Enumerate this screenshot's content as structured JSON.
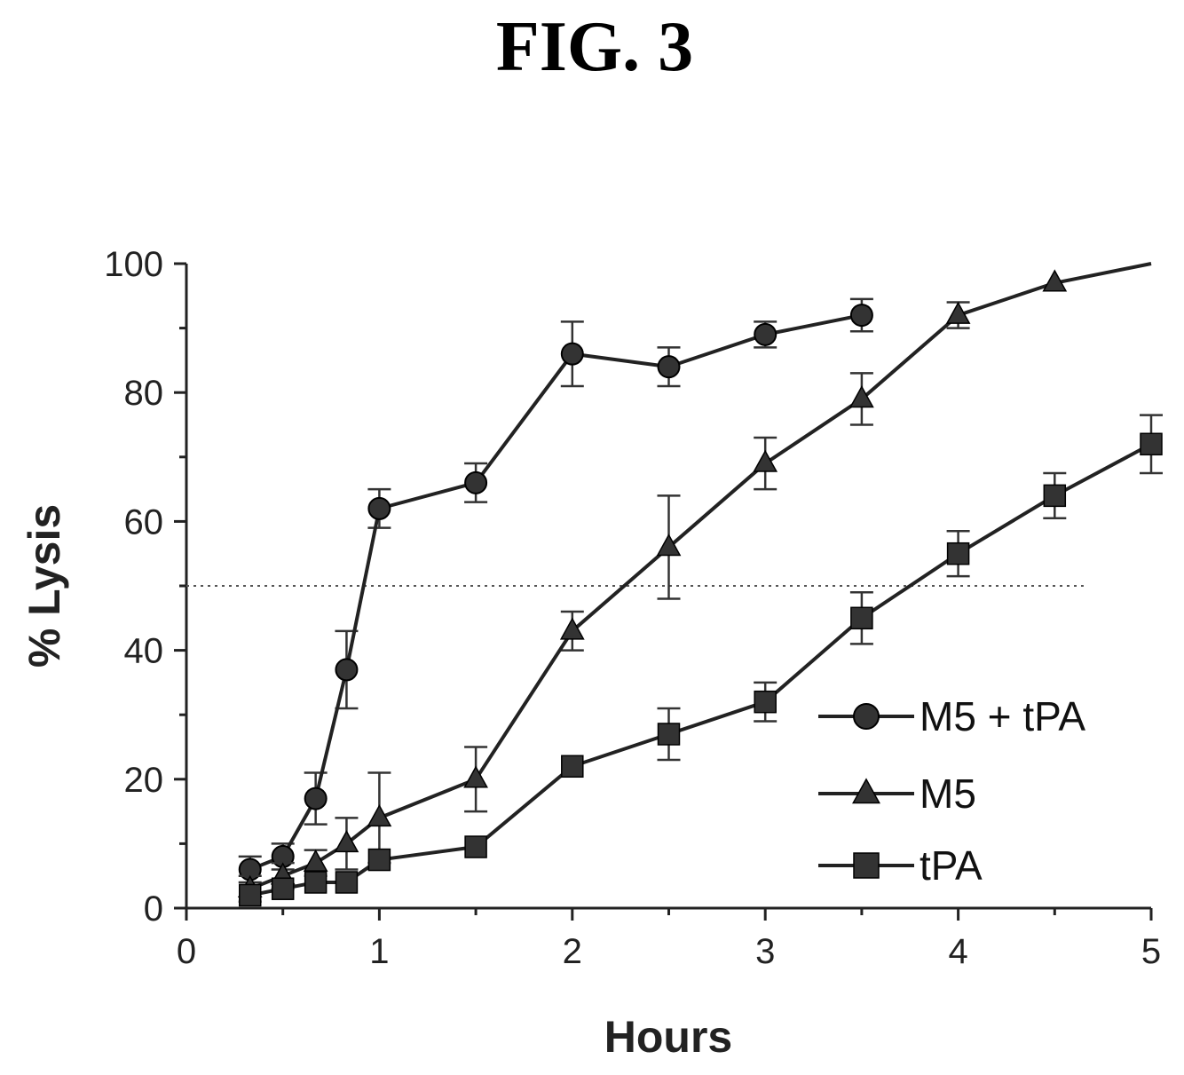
{
  "figure_title": "FIG. 3",
  "chart_data": {
    "type": "line",
    "title": "FIG. 3",
    "xlabel": "Hours",
    "ylabel": "% Lysis",
    "xlim": [
      0,
      5
    ],
    "ylim": [
      0,
      100
    ],
    "x_ticks": [
      "0",
      "1",
      "2",
      "3",
      "4",
      "5"
    ],
    "y_ticks": [
      "0",
      "20",
      "40",
      "60",
      "80",
      "100"
    ],
    "grid": false,
    "reference_line": {
      "y": 50,
      "style": "dotted"
    },
    "legend_position": "right",
    "series": [
      {
        "name": "M5 + tPA",
        "marker": "circle",
        "x": [
          0.33,
          0.5,
          0.67,
          0.83,
          1,
          1.5,
          2,
          2.5,
          3,
          3.5
        ],
        "y": [
          6,
          8,
          17,
          37,
          62,
          66,
          86,
          84,
          89,
          92
        ],
        "err": [
          2,
          2,
          4,
          6,
          3,
          3,
          5,
          3,
          2,
          2.5
        ]
      },
      {
        "name": "M5",
        "marker": "triangle",
        "x": [
          0.33,
          0.5,
          0.67,
          0.83,
          1,
          1.5,
          2,
          2.5,
          3,
          3.5,
          4,
          4.5,
          5
        ],
        "y": [
          3,
          5,
          7,
          10,
          14,
          20,
          43,
          56,
          69,
          79,
          92,
          97,
          100
        ],
        "err": [
          2,
          2,
          2,
          4,
          7,
          5,
          3,
          8,
          4,
          4,
          2,
          0,
          0
        ]
      },
      {
        "name": "tPA",
        "marker": "square",
        "x": [
          0.33,
          0.5,
          0.67,
          0.83,
          1,
          1.5,
          2,
          2.5,
          3,
          3.5,
          4,
          4.5,
          5
        ],
        "y": [
          2,
          3,
          4,
          4,
          7.5,
          9.5,
          22,
          27,
          32,
          45,
          55,
          64,
          72
        ],
        "err": [
          0,
          0,
          0,
          0,
          0,
          0,
          0,
          4,
          3,
          4,
          3.5,
          3.5,
          4.5
        ]
      }
    ]
  }
}
